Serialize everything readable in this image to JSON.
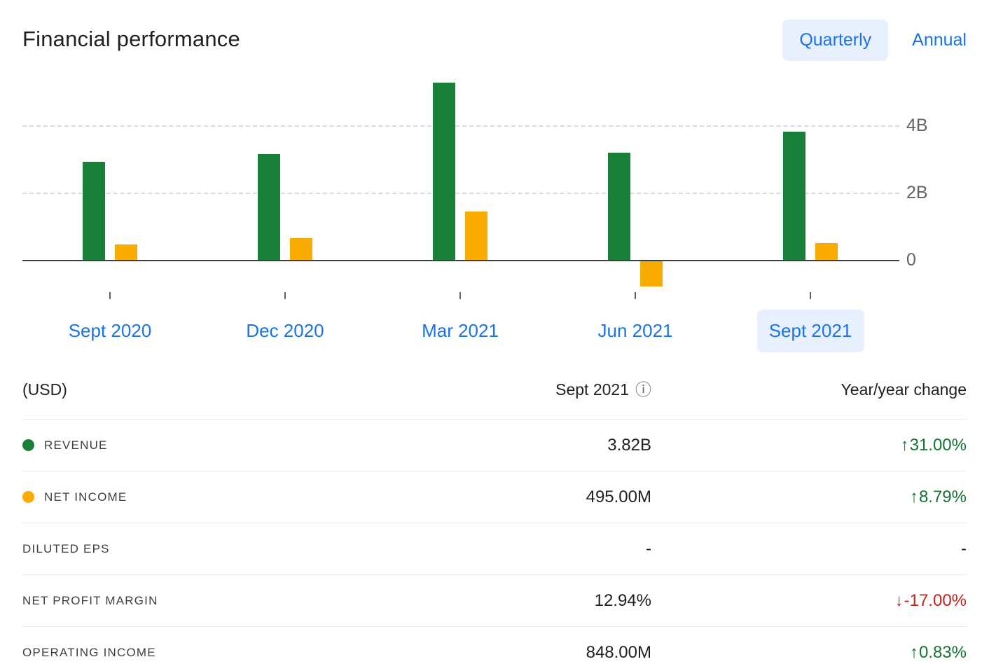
{
  "header": {
    "title": "Financial performance",
    "tabs": [
      {
        "label": "Quarterly",
        "selected": true
      },
      {
        "label": "Annual",
        "selected": false
      }
    ]
  },
  "chart_data": {
    "type": "bar",
    "title": "Financial performance",
    "categories": [
      "Sept 2020",
      "Dec 2020",
      "Mar 2021",
      "Jun 2021",
      "Sept 2021"
    ],
    "series": [
      {
        "name": "Revenue",
        "color": "#188038",
        "unit": "B",
        "values": [
          2.92,
          3.15,
          5.27,
          3.19,
          3.82
        ]
      },
      {
        "name": "Net income",
        "color": "#f9ab00",
        "unit": "B",
        "values": [
          0.46,
          0.65,
          1.44,
          -0.75,
          0.5
        ]
      }
    ],
    "yticks": [
      {
        "value": 4,
        "label": "4B"
      },
      {
        "value": 2,
        "label": "2B"
      },
      {
        "value": 0,
        "label": "0"
      }
    ],
    "ylim": [
      -0.9,
      5.5
    ],
    "grid": "horizontal-dashed",
    "yaxis_position": "right",
    "selected_category_index": 4,
    "selected_category": "Sept 2021"
  },
  "table": {
    "header": {
      "currency": "(USD)",
      "period": "Sept 2021",
      "change_label": "Year/year change"
    },
    "rows": [
      {
        "label": "REVENUE",
        "series": "Revenue",
        "value": "3.82B",
        "arrow": "↑",
        "change": "31.00%",
        "trend": "up"
      },
      {
        "label": "NET INCOME",
        "series": "Net income",
        "value": "495.00M",
        "arrow": "↑",
        "change": "8.79%",
        "trend": "up"
      },
      {
        "label": "DILUTED EPS",
        "value": "-",
        "arrow": "",
        "change": "-",
        "trend": ""
      },
      {
        "label": "NET PROFIT MARGIN",
        "value": "12.94%",
        "arrow": "↓",
        "change": "-17.00%",
        "trend": "down"
      },
      {
        "label": "OPERATING INCOME",
        "value": "848.00M",
        "arrow": "↑",
        "change": "0.83%",
        "trend": "up"
      }
    ]
  },
  "icons": {
    "info": "ⓘ",
    "up_arrow": "↑",
    "down_arrow": "↓"
  },
  "colors": {
    "revenue_bar": "#188038",
    "net_income_bar": "#f9ab00",
    "accent_blue": "#1a73e8",
    "selected_pill_bg": "#e8f0fe",
    "positive_change": "#137333",
    "negative_change": "#c5221f",
    "gridline": "#dadce0",
    "axis": "#3c4043"
  }
}
